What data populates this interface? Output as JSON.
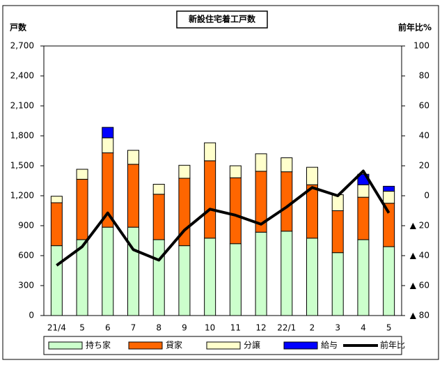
{
  "chart_data": {
    "type": "bar",
    "stacked": true,
    "title": "新設住宅着工戸数",
    "y_label": "戸数",
    "y2_label": "前年比%",
    "categories": [
      "21/4",
      "5",
      "6",
      "7",
      "8",
      "9",
      "10",
      "11",
      "12",
      "22/1",
      "2",
      "3",
      "4",
      "5"
    ],
    "series": [
      {
        "name": "持ち家",
        "color": "#ccffcc",
        "type": "bar",
        "values": [
          700,
          760,
          885,
          885,
          760,
          700,
          775,
          720,
          835,
          845,
          775,
          630,
          760,
          690
        ]
      },
      {
        "name": "貸家",
        "color": "#ff6600",
        "type": "bar",
        "values": [
          430,
          605,
          745,
          630,
          455,
          675,
          775,
          660,
          610,
          595,
          535,
          420,
          425,
          435
        ]
      },
      {
        "name": "分譲",
        "color": "#ffffcc",
        "type": "bar",
        "values": [
          65,
          100,
          150,
          140,
          100,
          130,
          180,
          120,
          175,
          140,
          175,
          160,
          125,
          120
        ]
      },
      {
        "name": "給与",
        "color": "#0000ff",
        "type": "bar",
        "values": [
          0,
          0,
          105,
          0,
          0,
          0,
          0,
          0,
          0,
          0,
          0,
          0,
          105,
          50
        ]
      },
      {
        "name": "前年比",
        "color": "#000000",
        "type": "line",
        "axis": "y2",
        "values": [
          -46.5,
          -34,
          -11.5,
          -36,
          -43,
          -23,
          -9,
          -13,
          -19,
          -7.5,
          5.5,
          0,
          16.5,
          -11.5
        ]
      }
    ],
    "ylim": [
      0,
      2700
    ],
    "yticks": [
      0,
      300,
      600,
      900,
      {
        "value": 1200,
        "label": "1,200"
      },
      {
        "value": 1500,
        "label": "1,500"
      },
      {
        "value": 1800,
        "label": "1,800"
      },
      {
        "value": 2100,
        "label": "2,100"
      },
      {
        "value": 2400,
        "label": "2,400"
      },
      {
        "value": 2700,
        "label": "2,700"
      }
    ],
    "y2lim": [
      -80,
      100
    ],
    "y2ticks": [
      {
        "value": -80,
        "label": "▲ 80"
      },
      {
        "value": -60,
        "label": "▲ 60"
      },
      {
        "value": -40,
        "label": "▲ 40"
      },
      {
        "value": -20,
        "label": "▲ 20"
      },
      0,
      20,
      40,
      60,
      80,
      100
    ],
    "grid": false,
    "legend": "bottom"
  }
}
